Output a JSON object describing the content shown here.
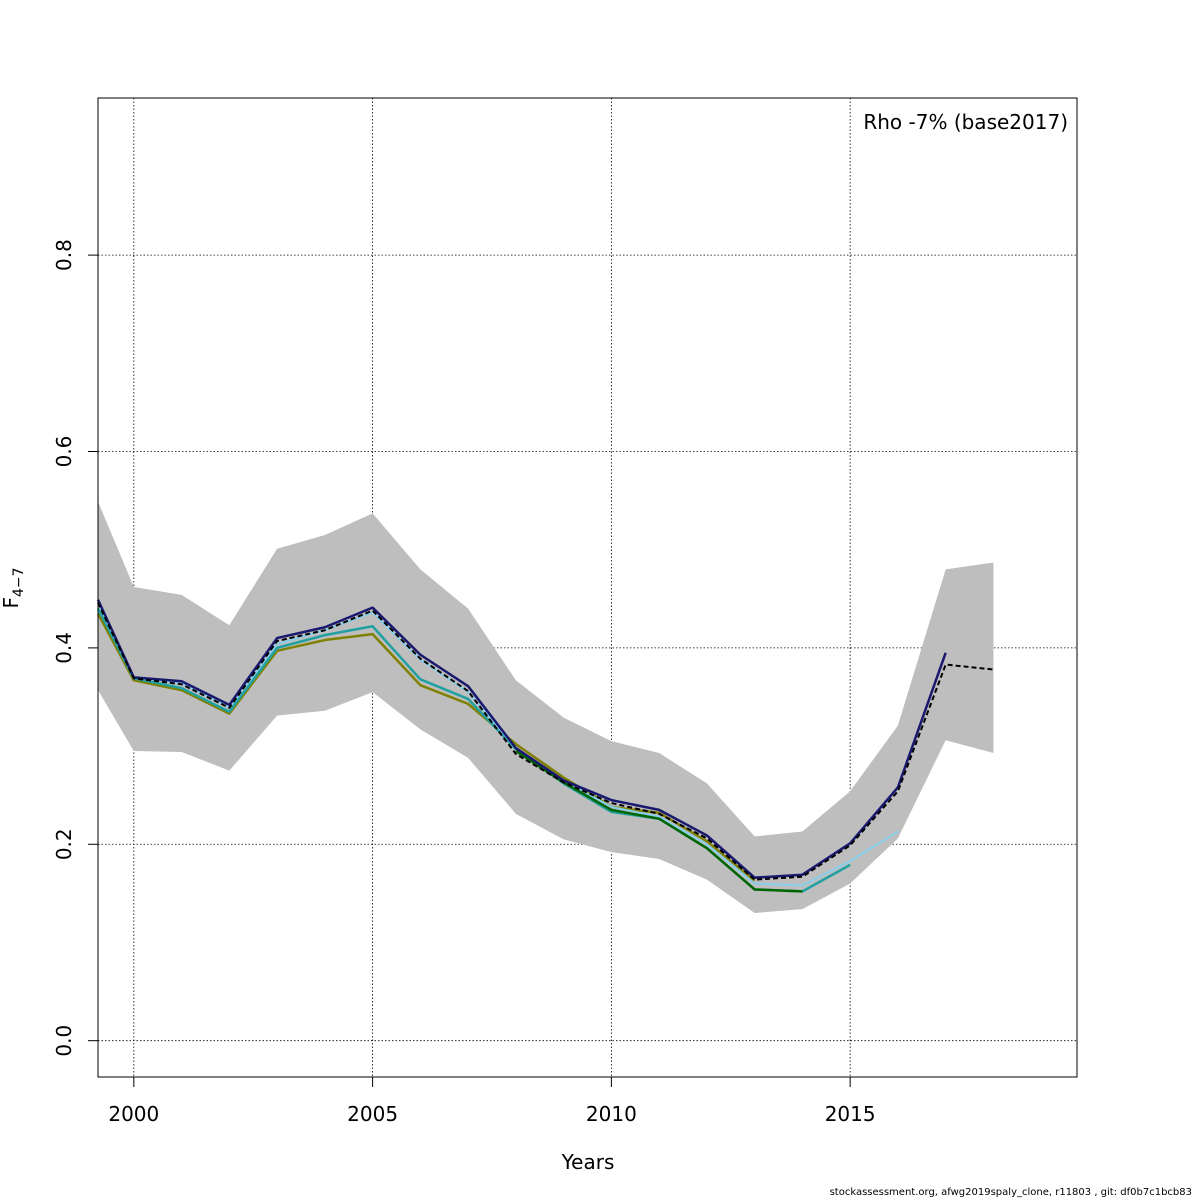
{
  "chart_data": {
    "type": "line",
    "annotation": "Rho -7% (base2017)",
    "xlabel": "Years",
    "ylabel_main": "F",
    "ylabel_sub": "4−7",
    "xlim": [
      1999.25,
      2019.75
    ],
    "ylim": [
      -0.037,
      0.96
    ],
    "x_ticks": [
      2000,
      2005,
      2010,
      2015
    ],
    "y_ticks": [
      0.0,
      0.2,
      0.4,
      0.6,
      0.8
    ],
    "y_tick_labels": [
      "0.0",
      "0.2",
      "0.4",
      "0.6",
      "0.8"
    ],
    "grid": true,
    "confidence_band": {
      "color": "#bebebe",
      "x": [
        1999.25,
        2000,
        2001,
        2002,
        2003,
        2004,
        2005,
        2006,
        2007,
        2008,
        2009,
        2010,
        2011,
        2012,
        2013,
        2014,
        2015,
        2016,
        2017,
        2018
      ],
      "upper": [
        0.549,
        0.462,
        0.454,
        0.423,
        0.501,
        0.515,
        0.537,
        0.48,
        0.44,
        0.367,
        0.329,
        0.305,
        0.293,
        0.262,
        0.208,
        0.213,
        0.254,
        0.321,
        0.48,
        0.487
      ],
      "lower": [
        0.357,
        0.295,
        0.294,
        0.275,
        0.331,
        0.336,
        0.355,
        0.317,
        0.288,
        0.231,
        0.205,
        0.192,
        0.185,
        0.164,
        0.13,
        0.134,
        0.16,
        0.206,
        0.306,
        0.293
      ]
    },
    "series": [
      {
        "color": "#808000",
        "dashed": false,
        "width": 2.5,
        "x": [
          1999.25,
          2000,
          2001,
          2002,
          2003,
          2004,
          2005,
          2006,
          2007,
          2008,
          2009,
          2010,
          2011,
          2012,
          2013
        ],
        "y": [
          0.435,
          0.367,
          0.357,
          0.333,
          0.397,
          0.408,
          0.414,
          0.362,
          0.343,
          0.302,
          0.268,
          0.238,
          0.232,
          0.203,
          0.163
        ]
      },
      {
        "color": "#20a0a0",
        "dashed": false,
        "width": 2.5,
        "x": [
          1999.25,
          2000,
          2001,
          2002,
          2003,
          2004,
          2005,
          2006,
          2007,
          2008,
          2009,
          2010,
          2011,
          2012,
          2013,
          2014,
          2015
        ],
        "y": [
          0.44,
          0.369,
          0.359,
          0.335,
          0.4,
          0.413,
          0.422,
          0.368,
          0.348,
          0.297,
          0.262,
          0.233,
          0.226,
          0.196,
          0.154,
          0.152,
          0.179
        ]
      },
      {
        "color": "#87ceeb",
        "dashed": false,
        "width": 2,
        "x": [
          1999.25,
          2000,
          2001,
          2002,
          2003,
          2004,
          2005,
          2006,
          2007,
          2008,
          2009,
          2010,
          2011,
          2012,
          2013,
          2014,
          2015,
          2016
        ],
        "y": [
          0.446,
          0.37,
          0.364,
          0.339,
          0.404,
          0.418,
          0.436,
          0.388,
          0.355,
          0.298,
          0.265,
          0.238,
          0.228,
          0.2,
          0.16,
          0.158,
          0.183,
          0.213
        ]
      },
      {
        "color": "#006400",
        "dashed": false,
        "width": 2.5,
        "x": [
          2008,
          2009,
          2010,
          2011,
          2012,
          2013,
          2014
        ],
        "y": [
          0.295,
          0.263,
          0.235,
          0.226,
          0.196,
          0.154,
          0.152
        ]
      },
      {
        "color": "#191970",
        "dashed": false,
        "width": 2.5,
        "x": [
          1999.25,
          2000,
          2001,
          2002,
          2003,
          2004,
          2005,
          2006,
          2007,
          2008,
          2009,
          2010,
          2011,
          2012,
          2013,
          2014,
          2015,
          2016,
          2017
        ],
        "y": [
          0.449,
          0.37,
          0.366,
          0.342,
          0.41,
          0.421,
          0.441,
          0.393,
          0.361,
          0.298,
          0.265,
          0.245,
          0.235,
          0.209,
          0.166,
          0.169,
          0.201,
          0.258,
          0.395
        ]
      },
      {
        "color": "#000000",
        "dashed": true,
        "width": 2,
        "x": [
          1999.25,
          2000,
          2001,
          2002,
          2003,
          2004,
          2005,
          2006,
          2007,
          2008,
          2009,
          2010,
          2011,
          2012,
          2013,
          2014,
          2015,
          2016,
          2017,
          2018
        ],
        "y": [
          0.446,
          0.369,
          0.363,
          0.339,
          0.407,
          0.418,
          0.438,
          0.389,
          0.356,
          0.292,
          0.263,
          0.242,
          0.231,
          0.206,
          0.164,
          0.167,
          0.199,
          0.254,
          0.383,
          0.378
        ]
      }
    ]
  },
  "footer": "stockassessment.org, afwg2019spaly_clone, r11803 , git: df0b7c1bcb83"
}
